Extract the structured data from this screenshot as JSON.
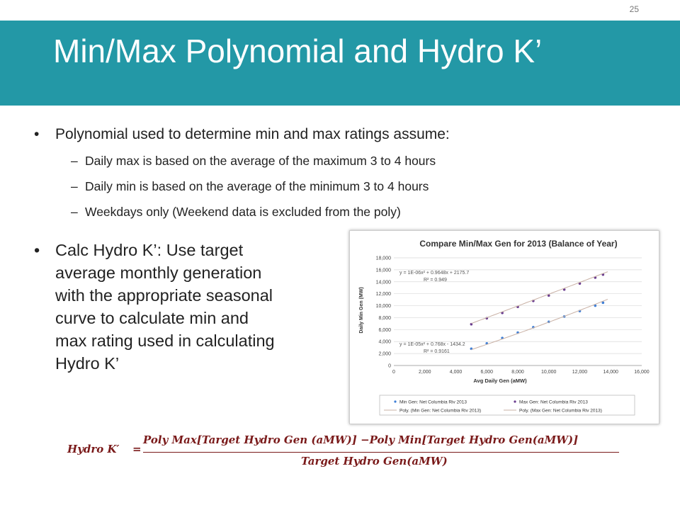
{
  "slide": {
    "number": "25",
    "title": "Min/Max Polynomial and Hydro K’"
  },
  "bullets": {
    "main1": "Polynomial used to determine min and max ratings assume:",
    "subs": [
      "Daily max is based on the average of the maximum 3 to 4 hours",
      "Daily min is based on the average of the minimum 3 to 4 hours",
      "Weekdays only (Weekend data is excluded from the poly)"
    ],
    "main2_lines": [
      "Calc Hydro K’: Use target",
      "average monthly generation",
      "with the appropriate seasonal",
      "curve to calculate min and",
      "max rating used in calculating",
      "Hydro K’"
    ],
    "bullet_glyph": "•",
    "dash_glyph": "–"
  },
  "formula": {
    "lhs": "Hydro K′",
    "equals": "=",
    "numerator": "Poly Max[Target Hydro Gen (aMW)] −Poly Min[Target Hydro Gen(aMW)]",
    "denominator": "Target Hydro Gen(aMW)"
  },
  "chart_data": {
    "type": "scatter",
    "title": "Compare Min/Max Gen for 2013 (Balance of Year)",
    "xlabel": "Avg Daily Gen (aMW)",
    "ylabel": "Daily Min Gen (MW)",
    "xlim": [
      0,
      16000
    ],
    "ylim": [
      0,
      18000
    ],
    "x_ticks": [
      "0",
      "2,000",
      "4,000",
      "6,000",
      "8,000",
      "10,000",
      "12,000",
      "14,000",
      "16,000"
    ],
    "y_ticks": [
      "0",
      "2,000",
      "4,000",
      "6,000",
      "8,000",
      "10,000",
      "12,000",
      "14,000",
      "16,000",
      "18,000"
    ],
    "grid": true,
    "legend_position": "bottom",
    "series": [
      {
        "name": "Min Gen: Net Columbia Riv 2013",
        "color": "#3f7fd6",
        "x": [
          5000,
          6000,
          7000,
          8000,
          9000,
          10000,
          11000,
          12000,
          13000,
          13500
        ],
        "y": [
          2800,
          3700,
          4600,
          5500,
          6400,
          7300,
          8200,
          9100,
          10000,
          10500
        ]
      },
      {
        "name": "Max Gen: Net Columbia Riv 2013",
        "color": "#6a3d8f",
        "x": [
          5000,
          6000,
          7000,
          8000,
          9000,
          10000,
          11000,
          12000,
          13000,
          13500
        ],
        "y": [
          6900,
          7900,
          8800,
          9800,
          10800,
          11700,
          12700,
          13700,
          14700,
          15200
        ]
      }
    ],
    "trendlines": [
      {
        "name": "Poly. (Min Gen: Net Columbia Riv 2013)",
        "equation": "y = 1E-05x² + 0.768x - 1434.2",
        "r2": "R² = 0.9161",
        "color": "#c9b1a5",
        "a": 1e-05,
        "b": 0.768,
        "c": -1434.2
      },
      {
        "name": "Poly. (Max Gen: Net Columbia Riv 2013)",
        "equation": "y = 1E-06x² + 0.9648x + 2175.7",
        "r2": "R² = 0.949",
        "color": "#c9b1a5",
        "a": 1e-06,
        "b": 0.9648,
        "c": 2175.7
      }
    ]
  }
}
